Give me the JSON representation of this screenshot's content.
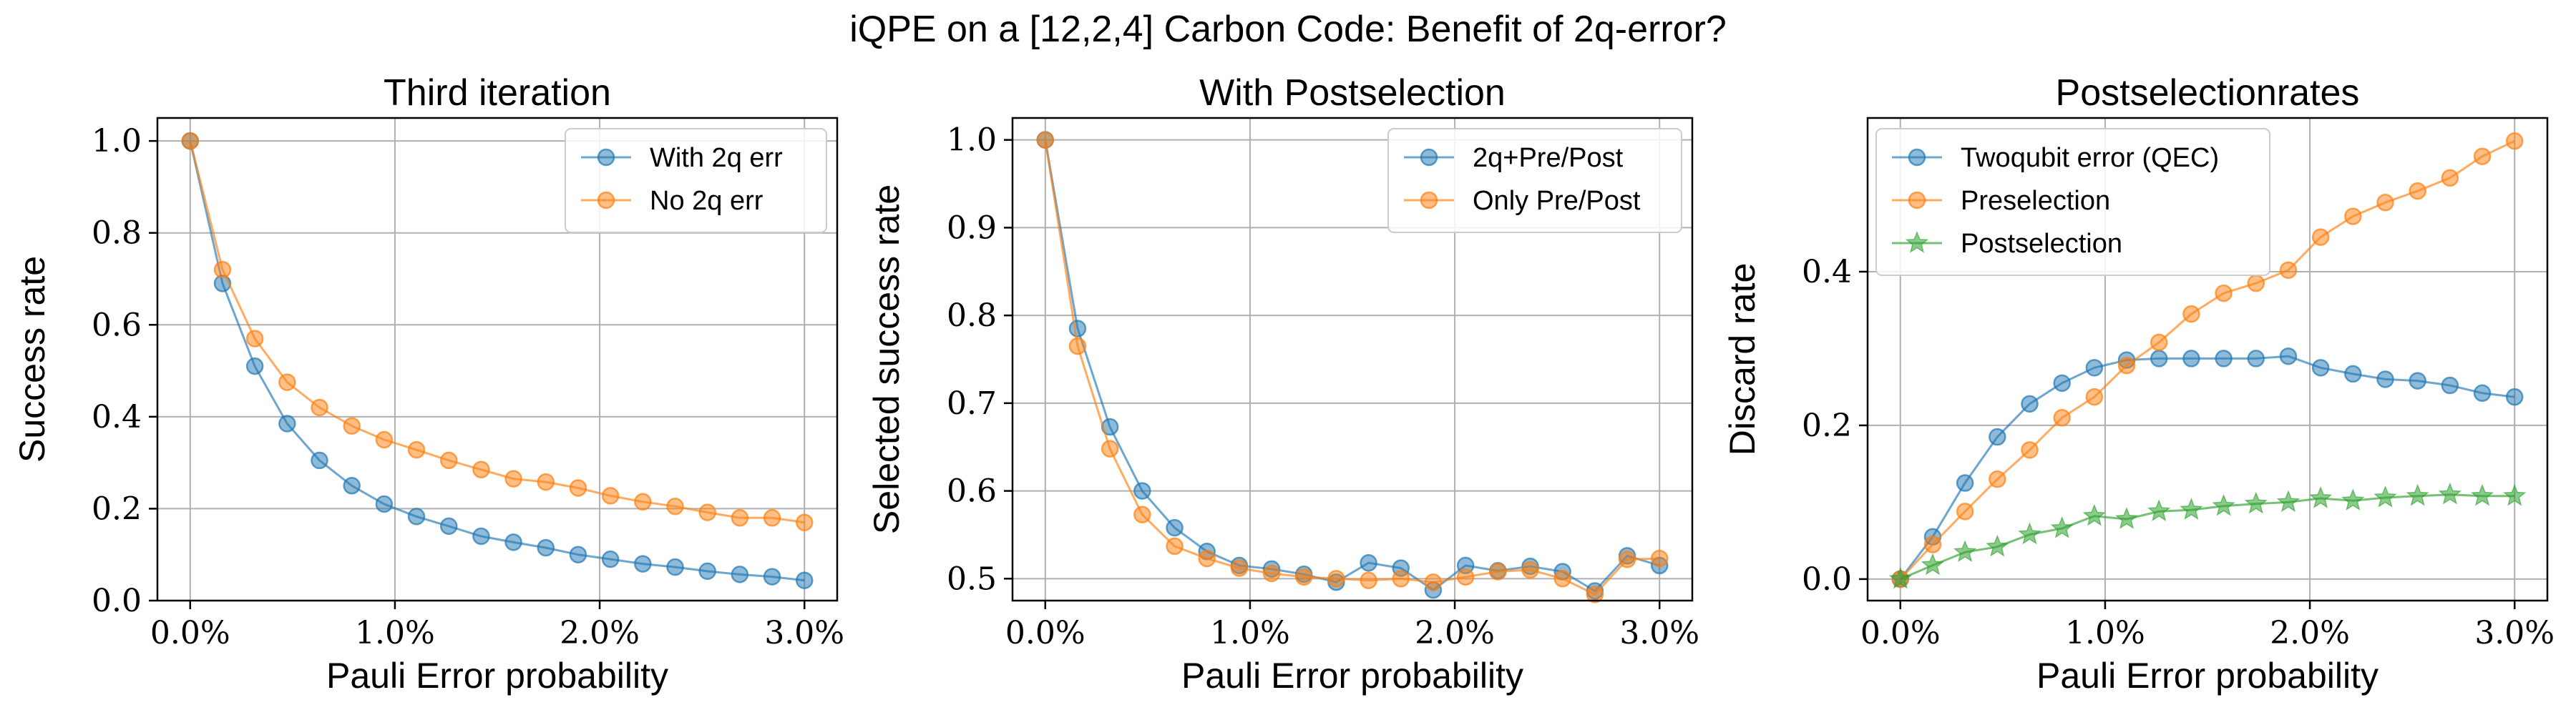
{
  "figure": {
    "suptitle": "iQPE on a [12,2,4] Carbon Code: Benefit of 2q-error?"
  },
  "colors": {
    "blue": "#1f77b4",
    "orange": "#ff7f0e",
    "green": "#2ca02c",
    "grid": "#b0b0b0"
  },
  "chart_data": [
    {
      "type": "line",
      "title": "Third iteration",
      "xlabel": "Pauli Error probability",
      "ylabel": "Success rate",
      "xlim": [
        -0.0016,
        0.0316
      ],
      "ylim": [
        0.0,
        1.05
      ],
      "x_ticks": [
        0.0,
        0.01,
        0.02,
        0.03
      ],
      "x_tick_labels": [
        "0.0%",
        "1.0%",
        "2.0%",
        "3.0%"
      ],
      "y_ticks": [
        0.0,
        0.2,
        0.4,
        0.6,
        0.8,
        1.0
      ],
      "y_tick_labels": [
        "0.0",
        "0.2",
        "0.4",
        "0.6",
        "0.8",
        "1.0"
      ],
      "grid": true,
      "legend_position": "top-right",
      "x": [
        0.0,
        0.0015789,
        0.0031579,
        0.0047368,
        0.0063158,
        0.0078947,
        0.0094737,
        0.0110526,
        0.0126316,
        0.0142105,
        0.0157895,
        0.0173684,
        0.0189474,
        0.0205263,
        0.0221053,
        0.0236842,
        0.0252632,
        0.0268421,
        0.0284211,
        0.03
      ],
      "series": [
        {
          "name": "With 2q err",
          "color": "#1f77b4",
          "marker": "circle",
          "values": [
            1.0,
            0.69,
            0.51,
            0.385,
            0.305,
            0.25,
            0.21,
            0.183,
            0.162,
            0.14,
            0.127,
            0.115,
            0.1,
            0.09,
            0.08,
            0.073,
            0.064,
            0.057,
            0.052,
            0.044
          ]
        },
        {
          "name": "No 2q err",
          "color": "#ff7f0e",
          "marker": "circle",
          "values": [
            1.0,
            0.72,
            0.57,
            0.475,
            0.42,
            0.38,
            0.35,
            0.328,
            0.305,
            0.285,
            0.265,
            0.258,
            0.245,
            0.228,
            0.215,
            0.205,
            0.192,
            0.18,
            0.18,
            0.17
          ]
        }
      ]
    },
    {
      "type": "line",
      "title": "With Postselection",
      "xlabel": "Pauli Error probability",
      "ylabel": "Selected success rate",
      "xlim": [
        -0.0016,
        0.0316
      ],
      "ylim": [
        0.475,
        1.025
      ],
      "x_ticks": [
        0.0,
        0.01,
        0.02,
        0.03
      ],
      "x_tick_labels": [
        "0.0%",
        "1.0%",
        "2.0%",
        "3.0%"
      ],
      "y_ticks": [
        0.5,
        0.6,
        0.7,
        0.8,
        0.9,
        1.0
      ],
      "y_tick_labels": [
        "0.5",
        "0.6",
        "0.7",
        "0.8",
        "0.9",
        "1.0"
      ],
      "grid": true,
      "legend_position": "top-right",
      "x": [
        0.0,
        0.0015789,
        0.0031579,
        0.0047368,
        0.0063158,
        0.0078947,
        0.0094737,
        0.0110526,
        0.0126316,
        0.0142105,
        0.0157895,
        0.0173684,
        0.0189474,
        0.0205263,
        0.0221053,
        0.0236842,
        0.0252632,
        0.0268421,
        0.0284211,
        0.03
      ],
      "series": [
        {
          "name": "2q+Pre/Post",
          "color": "#1f77b4",
          "marker": "circle",
          "values": [
            1.0,
            0.785,
            0.673,
            0.6,
            0.558,
            0.531,
            0.515,
            0.511,
            0.505,
            0.496,
            0.518,
            0.512,
            0.487,
            0.515,
            0.509,
            0.514,
            0.508,
            0.486,
            0.526,
            0.515
          ]
        },
        {
          "name": "Only Pre/Post",
          "color": "#ff7f0e",
          "marker": "circle",
          "values": [
            1.0,
            0.765,
            0.648,
            0.573,
            0.537,
            0.523,
            0.512,
            0.506,
            0.502,
            0.5,
            0.498,
            0.5,
            0.496,
            0.502,
            0.508,
            0.51,
            0.5,
            0.482,
            0.522,
            0.523
          ]
        }
      ]
    },
    {
      "type": "line",
      "title": "Postselectionrates",
      "xlabel": "Pauli Error probability",
      "ylabel": "Discard rate",
      "xlim": [
        -0.0016,
        0.0316
      ],
      "ylim": [
        -0.028,
        0.6
      ],
      "x_ticks": [
        0.0,
        0.01,
        0.02,
        0.03
      ],
      "x_tick_labels": [
        "0.0%",
        "1.0%",
        "2.0%",
        "3.0%"
      ],
      "y_ticks": [
        0.0,
        0.2,
        0.4
      ],
      "y_tick_labels": [
        "0.0",
        "0.2",
        "0.4"
      ],
      "grid": true,
      "legend_position": "top-left",
      "x": [
        0.0,
        0.0015789,
        0.0031579,
        0.0047368,
        0.0063158,
        0.0078947,
        0.0094737,
        0.0110526,
        0.0126316,
        0.0142105,
        0.0157895,
        0.0173684,
        0.0189474,
        0.0205263,
        0.0221053,
        0.0236842,
        0.0252632,
        0.0268421,
        0.0284211,
        0.03
      ],
      "series": [
        {
          "name": "Twoqubit error (QEC)",
          "color": "#1f77b4",
          "marker": "circle",
          "values": [
            0.0,
            0.055,
            0.125,
            0.185,
            0.228,
            0.255,
            0.275,
            0.285,
            0.287,
            0.287,
            0.287,
            0.287,
            0.29,
            0.275,
            0.267,
            0.26,
            0.258,
            0.252,
            0.242,
            0.237
          ]
        },
        {
          "name": "Preselection",
          "color": "#ff7f0e",
          "marker": "circle",
          "values": [
            0.0,
            0.045,
            0.088,
            0.13,
            0.168,
            0.21,
            0.237,
            0.278,
            0.308,
            0.345,
            0.372,
            0.385,
            0.402,
            0.445,
            0.472,
            0.49,
            0.505,
            0.522,
            0.55,
            0.57
          ]
        },
        {
          "name": "Postselection",
          "color": "#2ca02c",
          "marker": "star",
          "values": [
            0.0,
            0.018,
            0.035,
            0.042,
            0.058,
            0.066,
            0.082,
            0.078,
            0.088,
            0.09,
            0.095,
            0.098,
            0.1,
            0.105,
            0.102,
            0.106,
            0.108,
            0.11,
            0.108,
            0.108
          ]
        }
      ]
    }
  ]
}
